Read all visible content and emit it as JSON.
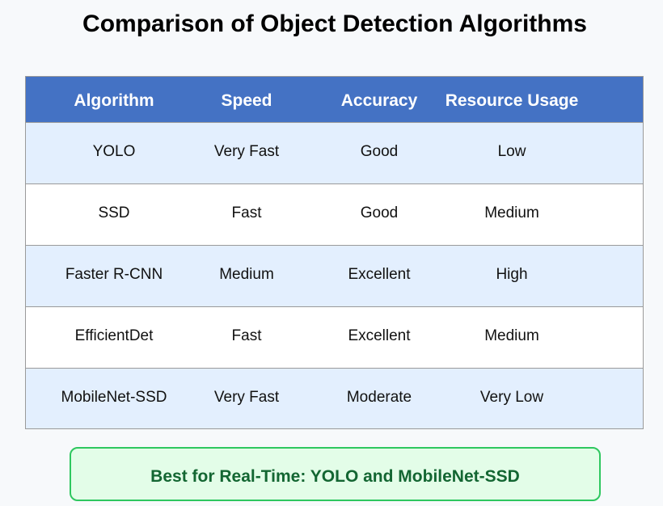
{
  "title": "Comparison of Object Detection Algorithms",
  "table": {
    "headers": [
      "Algorithm",
      "Speed",
      "Accuracy",
      "Resource Usage"
    ],
    "rows": [
      [
        "YOLO",
        "Very Fast",
        "Good",
        "Low"
      ],
      [
        "SSD",
        "Fast",
        "Good",
        "Medium"
      ],
      [
        "Faster R-CNN",
        "Medium",
        "Excellent",
        "High"
      ],
      [
        "EfficientDet",
        "Fast",
        "Excellent",
        "Medium"
      ],
      [
        "MobileNet-SSD",
        "Very Fast",
        "Moderate",
        "Very Low"
      ]
    ]
  },
  "note": "Best for Real-Time: YOLO and MobileNet-SSD",
  "colors": {
    "header_bg": "#4472c4",
    "row_alt_bg": "#e3effe",
    "note_border": "#2ec75f",
    "note_bg": "#e3fde8",
    "note_text": "#136632"
  }
}
